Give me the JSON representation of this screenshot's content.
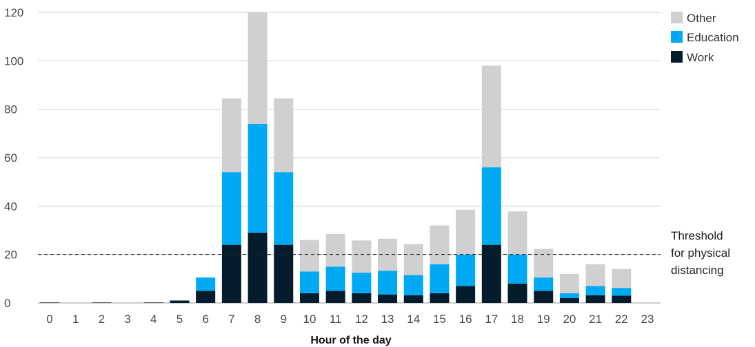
{
  "chart_data": {
    "type": "bar",
    "stacked": true,
    "title": "",
    "xlabel": "Hour of the day",
    "ylabel": "",
    "ylim": [
      0,
      120
    ],
    "yticks": [
      0,
      20,
      40,
      60,
      80,
      100,
      120
    ],
    "grid": "horizontal",
    "legend_position": "top-right",
    "categories": [
      "0",
      "1",
      "2",
      "3",
      "4",
      "5",
      "6",
      "7",
      "8",
      "9",
      "10",
      "11",
      "12",
      "13",
      "14",
      "15",
      "16",
      "17",
      "18",
      "19",
      "20",
      "21",
      "22",
      "23"
    ],
    "series": [
      {
        "name": "Work",
        "color": "#051C2C",
        "values": [
          0.2,
          0,
          0.2,
          0,
          0.2,
          1,
          5,
          24,
          29,
          24,
          4,
          5,
          4,
          3.5,
          3.2,
          4,
          7,
          24,
          8,
          5,
          2,
          3.2,
          3,
          0
        ]
      },
      {
        "name": "Education",
        "color": "#00A9F4",
        "values": [
          0,
          0,
          0,
          0,
          0,
          0,
          5.5,
          30,
          45,
          30,
          9,
          10,
          8.5,
          9.8,
          8.3,
          12,
          13,
          32,
          12,
          5.5,
          2,
          3.8,
          3.2,
          0
        ]
      },
      {
        "name": "Other",
        "color": "#D0D0D0",
        "values": [
          0,
          0,
          0,
          0,
          0,
          0,
          0,
          30.5,
          46,
          30.5,
          13,
          13.5,
          13.3,
          13.2,
          12.8,
          16,
          18.5,
          42,
          17.8,
          11.8,
          8,
          9,
          7.8,
          0
        ]
      }
    ],
    "threshold": {
      "value": 20,
      "label_lines": [
        "Threshold",
        "for physical",
        "distancing"
      ]
    }
  }
}
